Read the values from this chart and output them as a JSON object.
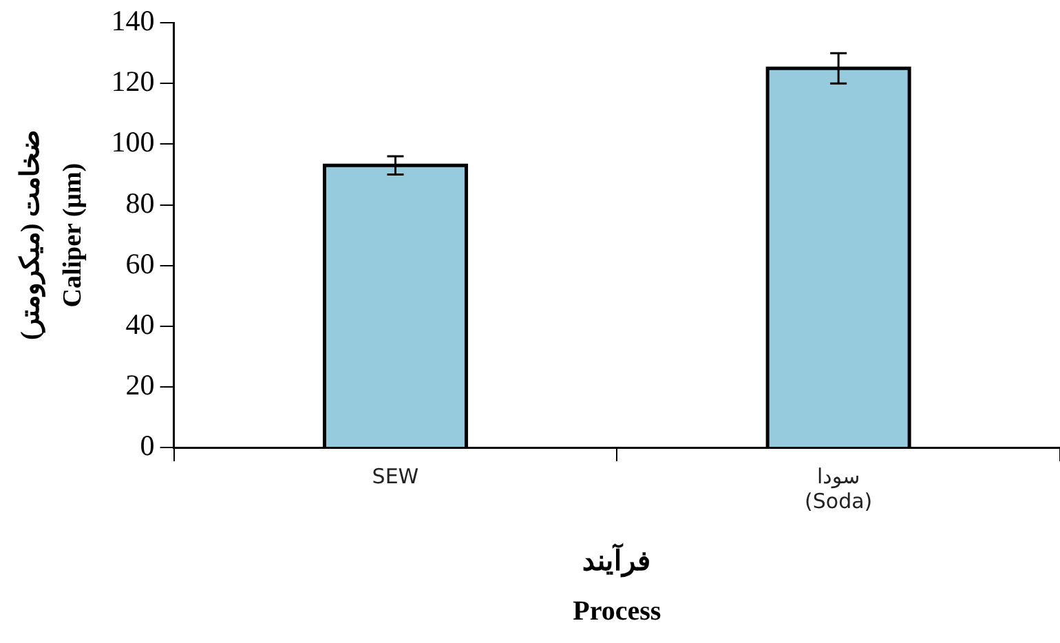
{
  "chart_data": {
    "type": "bar",
    "xlabel": "فرآیند\nProcess",
    "ylabel": "ضخامت (میکرومتر)\nCaliper (μm)",
    "categories": [
      "SEW",
      "سودا\n(Soda)"
    ],
    "values": [
      93,
      125
    ],
    "errors": [
      3,
      5
    ],
    "color": "#96cbde",
    "ylim": [
      0,
      140
    ],
    "yticks": [
      0,
      20,
      40,
      60,
      80,
      100,
      120,
      140
    ],
    "grid": false,
    "legend": false
  }
}
